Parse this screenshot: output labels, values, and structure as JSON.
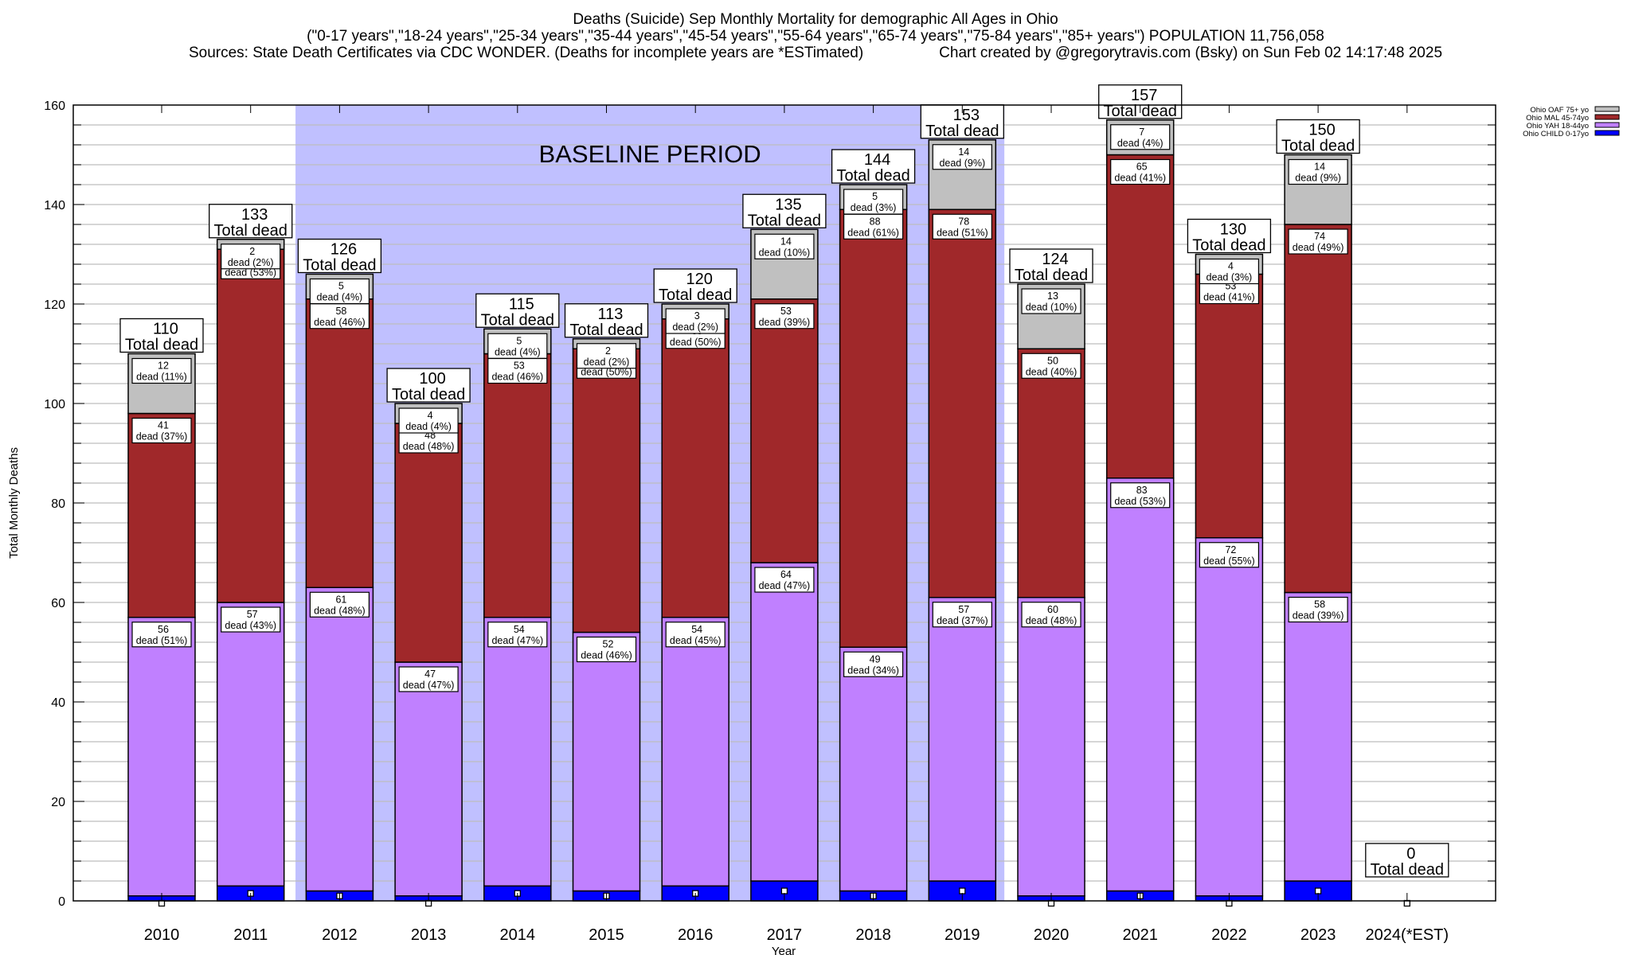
{
  "chart_data": {
    "type": "bar",
    "stacked": true,
    "title": "Deaths (Suicide) Sep Monthly Mortality for demographic All Ages in Ohio",
    "subtitle": "(\"0-17 years\",\"18-24 years\",\"25-34 years\",\"35-44 years\",\"45-54 years\",\"55-64 years\",\"65-74 years\",\"75-84 years\",\"85+ years\") POPULATION 11,756,058",
    "sources": "Sources: State Death Certificates via CDC WONDER. (Deaths for incomplete years are *ESTimated)",
    "credit": "Chart created by @gregorytravis.com (Bsky) on Sun Feb 02 14:17:48 2025",
    "xlabel": "Year",
    "ylabel": "Total Monthly Deaths",
    "ylim": [
      0,
      160
    ],
    "yticks": [
      0,
      20,
      40,
      60,
      80,
      100,
      120,
      140,
      160
    ],
    "minor_grid_step": 4,
    "grid": true,
    "legend_position": "top-right",
    "categories": [
      "2010",
      "2011",
      "2012",
      "2013",
      "2014",
      "2015",
      "2016",
      "2017",
      "2018",
      "2019",
      "2020",
      "2021",
      "2022",
      "2023",
      "2024(*EST)"
    ],
    "series": [
      {
        "name": "Ohio CHILD 0-17yo",
        "color": "#0000ff",
        "values": [
          1,
          3,
          2,
          1,
          3,
          2,
          3,
          4,
          2,
          4,
          1,
          2,
          1,
          4,
          0
        ],
        "show_labels": false
      },
      {
        "name": "Ohio YAH 18-44yo",
        "color": "#c080ff",
        "values": [
          56,
          57,
          61,
          47,
          54,
          52,
          54,
          64,
          49,
          57,
          60,
          83,
          72,
          58,
          0
        ],
        "pct": [
          "51%",
          "43%",
          "48%",
          "47%",
          "47%",
          "46%",
          "45%",
          "47%",
          "34%",
          "37%",
          "48%",
          "53%",
          "55%",
          "39%",
          ""
        ],
        "show_labels": true
      },
      {
        "name": "Ohio MAL 45-74yo",
        "color": "#a0282a",
        "values": [
          41,
          71,
          58,
          48,
          53,
          57,
          60,
          53,
          88,
          78,
          50,
          65,
          53,
          74,
          0
        ],
        "pct": [
          "37%",
          "53%",
          "46%",
          "48%",
          "46%",
          "50%",
          "50%",
          "39%",
          "61%",
          "51%",
          "40%",
          "41%",
          "41%",
          "49%",
          ""
        ],
        "show_labels": true
      },
      {
        "name": "Ohio OAF 75+ yo",
        "color": "#c0c0c0",
        "values": [
          12,
          2,
          5,
          4,
          5,
          2,
          3,
          14,
          5,
          14,
          13,
          7,
          4,
          14,
          0
        ],
        "pct": [
          "11%",
          "2%",
          "4%",
          "4%",
          "4%",
          "2%",
          "2%",
          "10%",
          "3%",
          "9%",
          "10%",
          "4%",
          "3%",
          "9%",
          ""
        ],
        "show_labels": true
      }
    ],
    "totals": [
      110,
      133,
      126,
      100,
      115,
      113,
      120,
      135,
      144,
      153,
      124,
      157,
      130,
      150,
      0
    ],
    "total_suffix": "Total dead",
    "segment_label_word": "dead",
    "annotation": {
      "text": "BASELINE PERIOD",
      "from_category": "2012",
      "to_category": "2019",
      "shade_color": "#c0c0ff"
    }
  }
}
